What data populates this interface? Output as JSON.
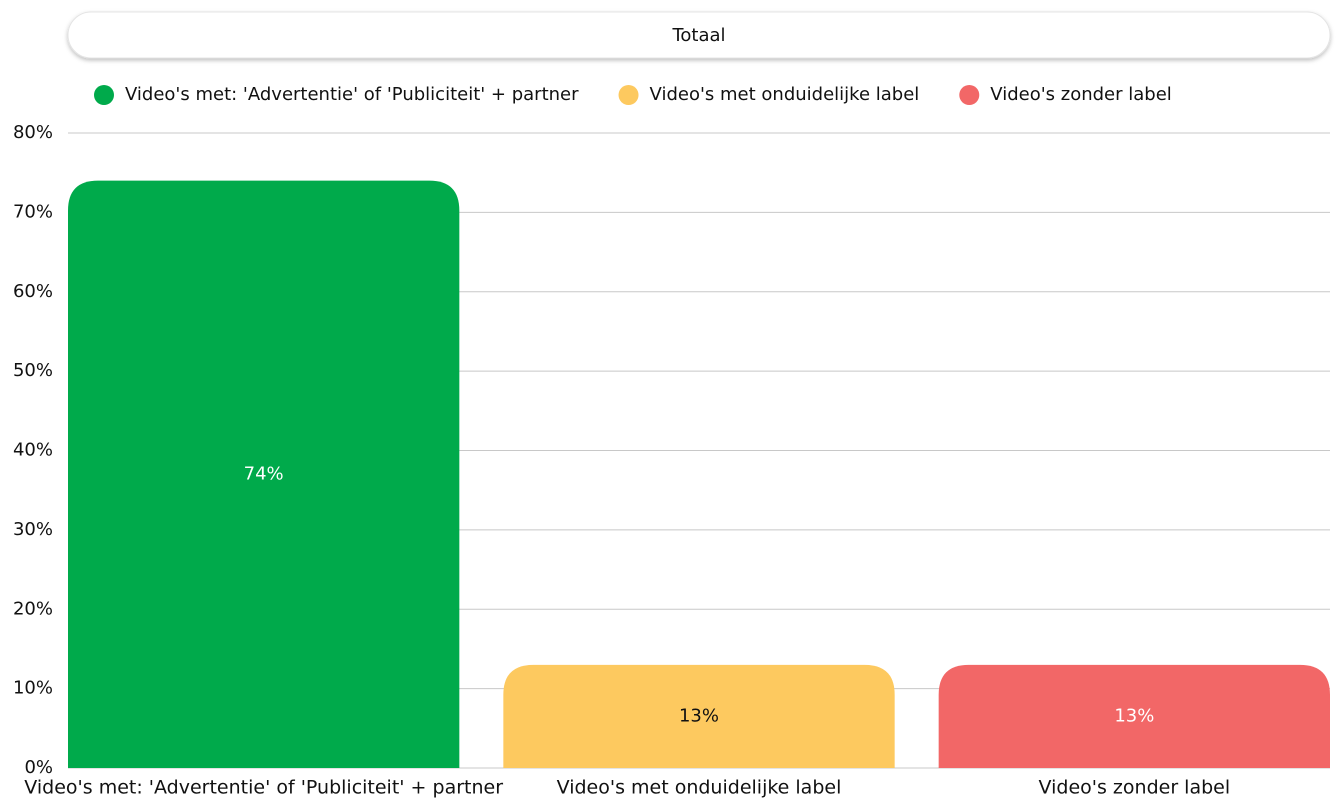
{
  "chart_data": {
    "type": "bar",
    "title": "Totaal",
    "categories": [
      "Video's met: 'Advertentie' of 'Publiciteit' + partner",
      "Video's met onduidelijke label",
      "Video's zonder label"
    ],
    "values": [
      74,
      13,
      13
    ],
    "value_labels": [
      "74%",
      "13%",
      "13%"
    ],
    "colors": [
      "#00aa4b",
      "#fdc95f",
      "#f26767"
    ],
    "ylim": [
      0,
      80
    ],
    "yticks": [
      {
        "value": 0,
        "label": "0%"
      },
      {
        "value": 10,
        "label": "10%"
      },
      {
        "value": 20,
        "label": "20%"
      },
      {
        "value": 30,
        "label": "30%"
      },
      {
        "value": 40,
        "label": "40%"
      },
      {
        "value": 50,
        "label": "50%"
      },
      {
        "value": 60,
        "label": "60%"
      },
      {
        "value": 70,
        "label": "70%"
      },
      {
        "value": 80,
        "label": "80%"
      }
    ],
    "grid": true,
    "legend": "top"
  }
}
